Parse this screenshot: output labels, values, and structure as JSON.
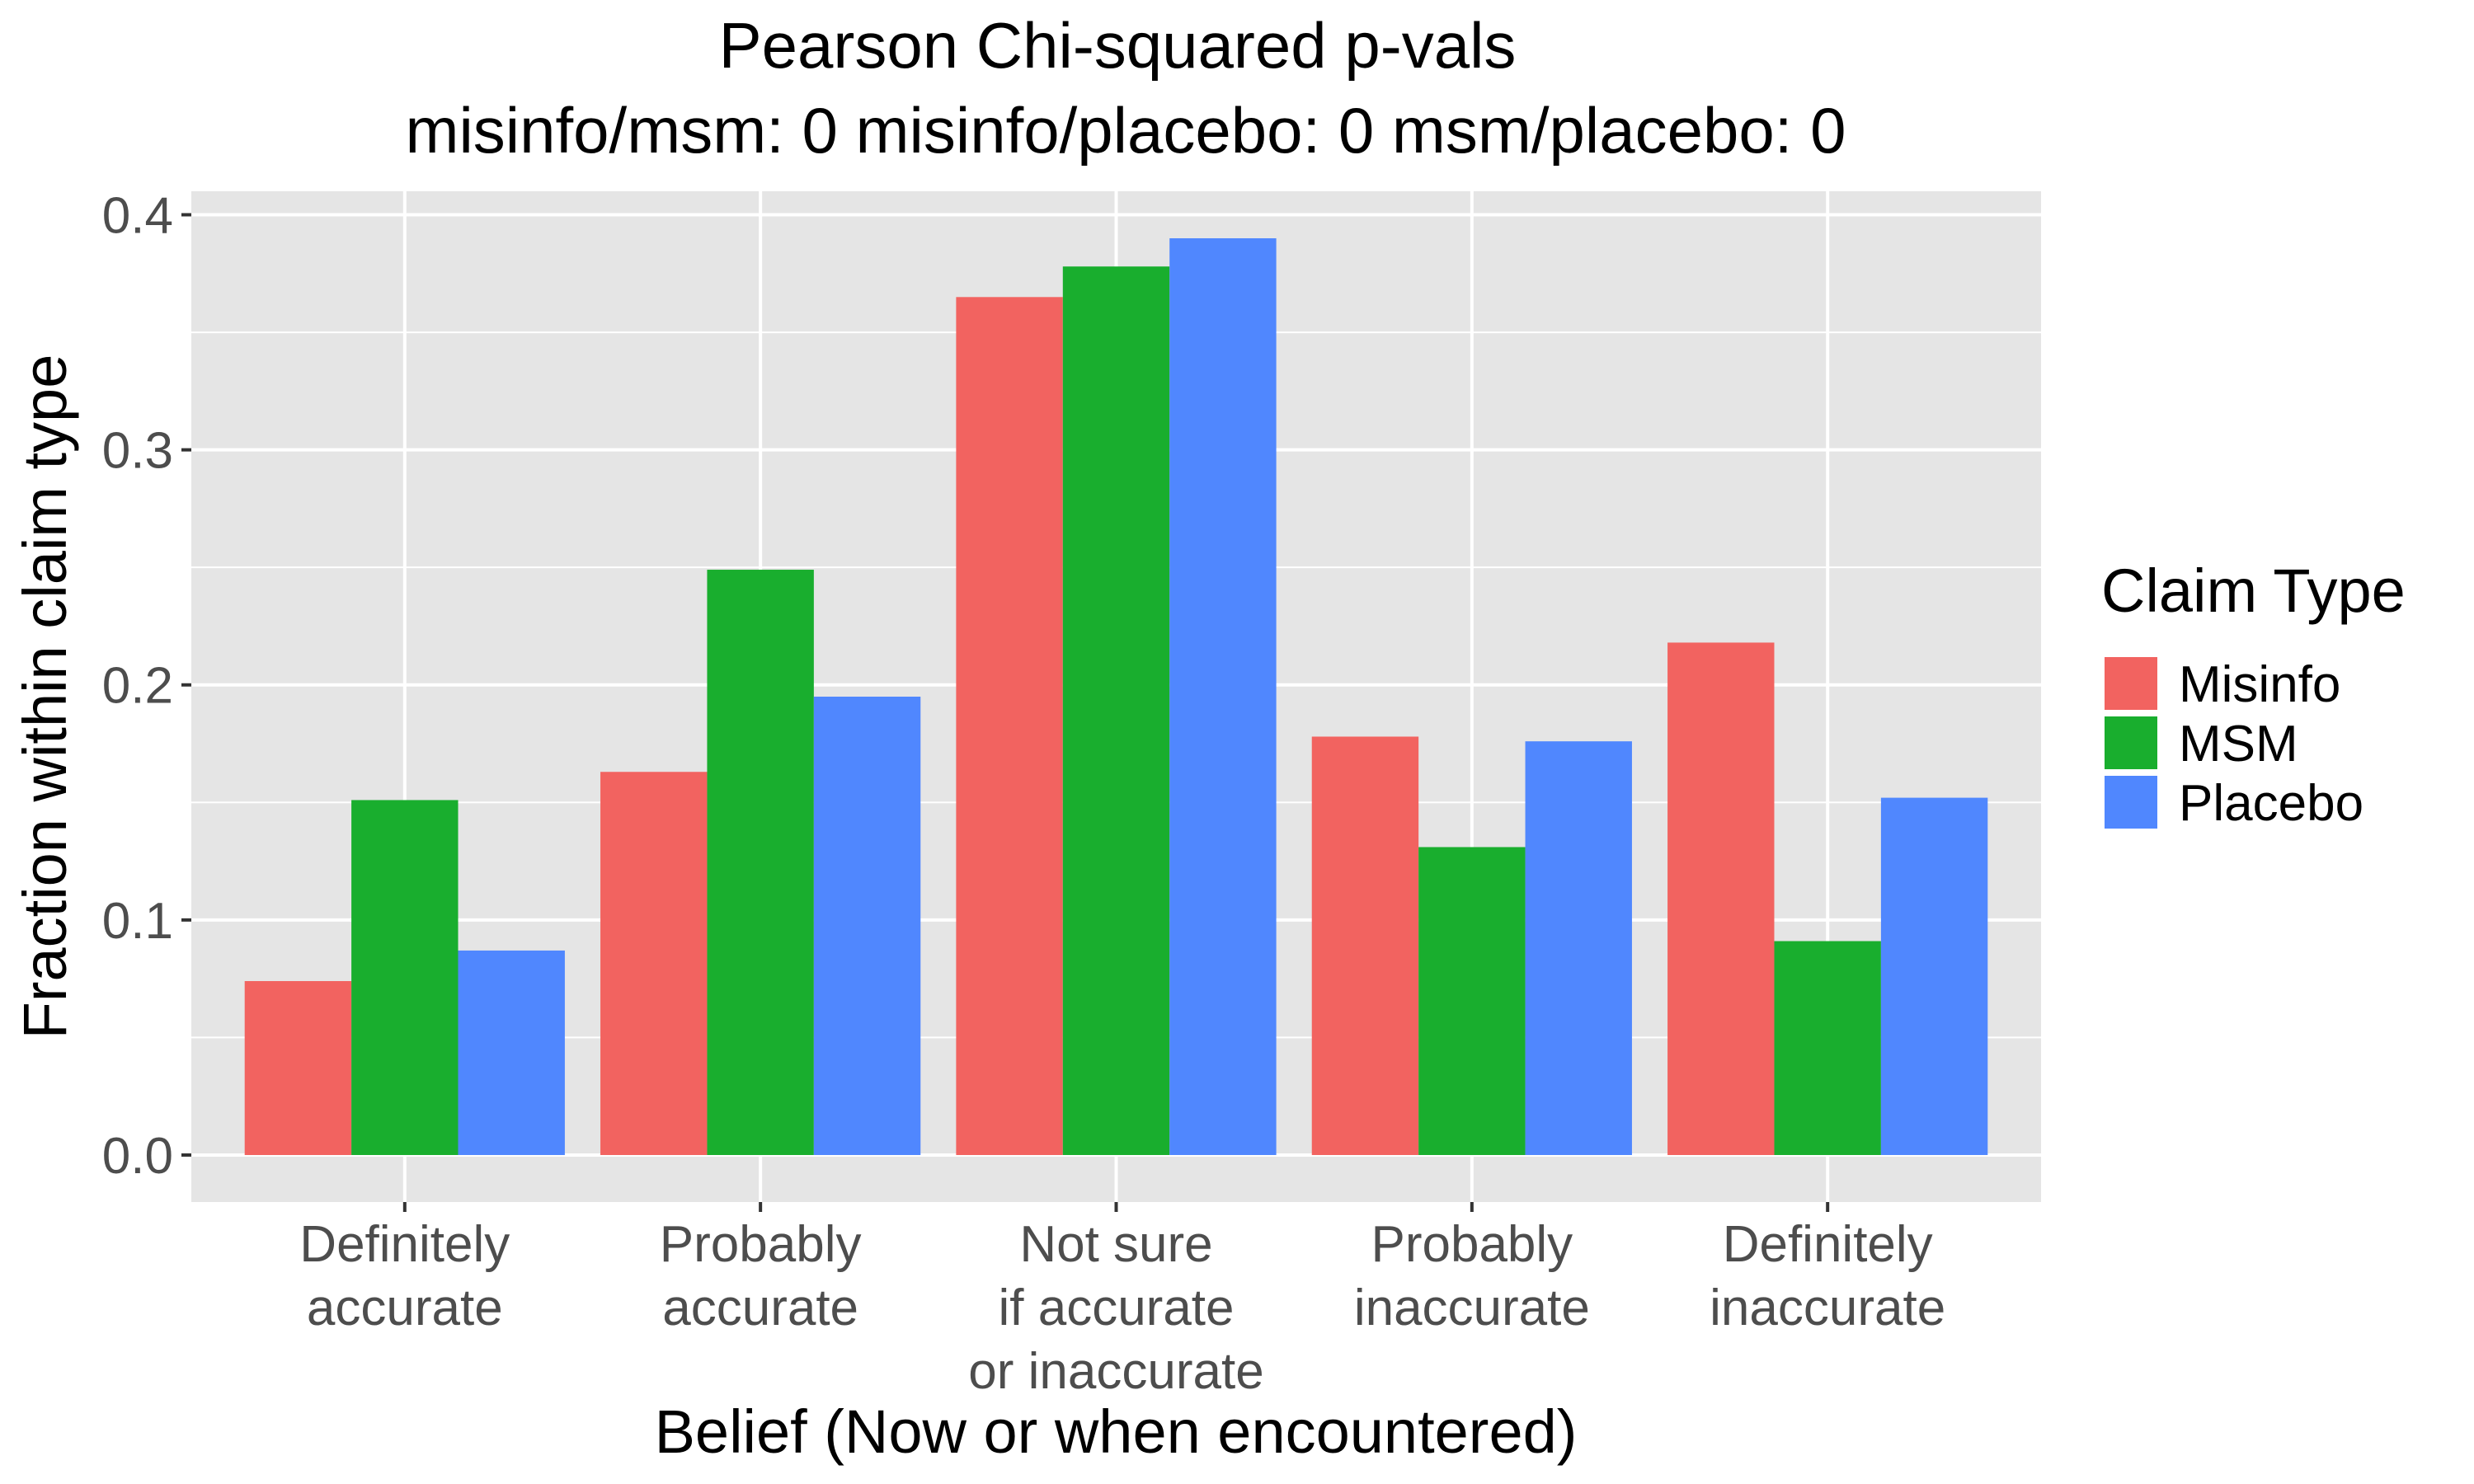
{
  "chart_data": {
    "type": "bar",
    "title_line1": "Pearson Chi-squared p-vals",
    "title_line2": "misinfo/msm: 0 misinfo/placebo: 0 msm/placebo: 0",
    "xlabel": "Belief (Now or when encountered)",
    "ylabel": "Fraction within claim type",
    "ylim": [
      -0.02,
      0.41
    ],
    "yticks": [
      0.0,
      0.1,
      0.2,
      0.3,
      0.4
    ],
    "ytick_labels": [
      "0.0",
      "0.1",
      "0.2",
      "0.3",
      "0.4"
    ],
    "grid": true,
    "legend_position": "right",
    "legend_title": "Claim Type",
    "categories": [
      [
        "Definitely",
        "accurate"
      ],
      [
        "Probably",
        "accurate"
      ],
      [
        "Not sure",
        "if accurate",
        "or inaccurate"
      ],
      [
        "Probably",
        "inaccurate"
      ],
      [
        "Definitely",
        "inaccurate"
      ]
    ],
    "series": [
      {
        "name": "Misinfo",
        "color": "#F26360",
        "values": [
          0.074,
          0.163,
          0.365,
          0.178,
          0.218
        ]
      },
      {
        "name": "MSM",
        "color": "#19AE2E",
        "values": [
          0.151,
          0.249,
          0.378,
          0.131,
          0.091
        ]
      },
      {
        "name": "Placebo",
        "color": "#5087FE",
        "values": [
          0.087,
          0.195,
          0.39,
          0.176,
          0.152
        ]
      }
    ],
    "panel_background": "#E5E5E5",
    "grid_color": "#FFFFFF"
  }
}
